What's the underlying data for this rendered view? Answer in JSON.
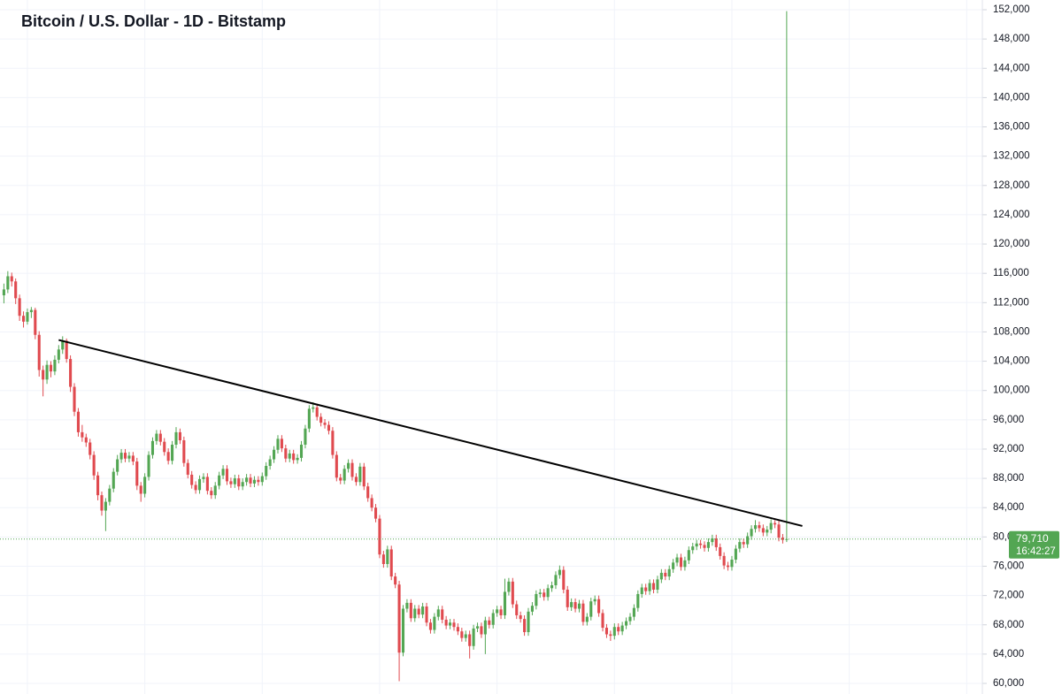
{
  "chart_data": {
    "type": "candlestick",
    "title": "Bitcoin / U.S. Dollar - 1D - Bitstamp",
    "up_color": "#53a653",
    "down_color": "#e04a4f",
    "grid": true,
    "xlim": [
      -1,
      250
    ],
    "xticks": [
      6,
      36,
      66,
      96,
      126,
      156,
      186,
      216,
      246
    ],
    "ylim": [
      58550,
      153330
    ],
    "yticks": [
      {
        "value": 60000,
        "label": "60,000"
      },
      {
        "value": 64000,
        "label": "64,000"
      },
      {
        "value": 68000,
        "label": "68,000"
      },
      {
        "value": 72000,
        "label": "72,000"
      },
      {
        "value": 76000,
        "label": "76,000"
      },
      {
        "value": 80000,
        "label": "80,000"
      },
      {
        "value": 84000,
        "label": "84,000"
      },
      {
        "value": 88000,
        "label": "88,000"
      },
      {
        "value": 92000,
        "label": "92,000"
      },
      {
        "value": 96000,
        "label": "96,000"
      },
      {
        "value": 100000,
        "label": "100,000"
      },
      {
        "value": 104000,
        "label": "104,000"
      },
      {
        "value": 108000,
        "label": "108,000"
      },
      {
        "value": 112000,
        "label": "112,000"
      },
      {
        "value": 116000,
        "label": "116,000"
      },
      {
        "value": 120000,
        "label": "120,000"
      },
      {
        "value": 124000,
        "label": "124,000"
      },
      {
        "value": 128000,
        "label": "128,000"
      },
      {
        "value": 132000,
        "label": "132,000"
      },
      {
        "value": 136000,
        "label": "136,000"
      },
      {
        "value": 140000,
        "label": "140,000"
      },
      {
        "value": 144000,
        "label": "144,000"
      },
      {
        "value": 148000,
        "label": "148,000"
      },
      {
        "value": 152000,
        "label": "152,000"
      }
    ],
    "last_price": {
      "value": 79710,
      "label": "79,710",
      "time": "16:42:27"
    },
    "trendline": {
      "x": [
        14,
        204
      ],
      "y": [
        106900,
        81500
      ],
      "color": "#000000"
    },
    "candles": [
      [
        113000,
        114600,
        111900,
        113800
      ],
      [
        113800,
        116300,
        113300,
        115600
      ],
      [
        115600,
        116100,
        114200,
        114900
      ],
      [
        114900,
        115300,
        111800,
        112600
      ],
      [
        112600,
        113100,
        109500,
        110200
      ],
      [
        110200,
        110800,
        108600,
        109400
      ],
      [
        109400,
        111200,
        109000,
        110700
      ],
      [
        110700,
        111400,
        109900,
        111000
      ],
      [
        111000,
        111300,
        107000,
        107600
      ],
      [
        107600,
        108100,
        101900,
        102800
      ],
      [
        102800,
        103400,
        99200,
        101500
      ],
      [
        101500,
        104100,
        100900,
        103500
      ],
      [
        103500,
        104000,
        101800,
        102600
      ],
      [
        102600,
        104800,
        102100,
        104200
      ],
      [
        104200,
        106200,
        103700,
        105600
      ],
      [
        105600,
        107400,
        105000,
        106800
      ],
      [
        106800,
        107100,
        103800,
        104300
      ],
      [
        104300,
        104800,
        99800,
        100500
      ],
      [
        100500,
        101000,
        96500,
        97100
      ],
      [
        97100,
        97600,
        93700,
        94300
      ],
      [
        94300,
        95300,
        93000,
        93600
      ],
      [
        93600,
        94100,
        92300,
        92900
      ],
      [
        92900,
        93400,
        90600,
        91200
      ],
      [
        91200,
        91700,
        87800,
        88400
      ],
      [
        88400,
        88900,
        85000,
        85700
      ],
      [
        85700,
        86200,
        82900,
        83600
      ],
      [
        83600,
        85300,
        80800,
        84800
      ],
      [
        84800,
        87100,
        84300,
        86600
      ],
      [
        86600,
        89400,
        86100,
        88900
      ],
      [
        88900,
        91200,
        88400,
        90600
      ],
      [
        90600,
        92000,
        90100,
        91500
      ],
      [
        91500,
        92000,
        90200,
        90700
      ],
      [
        90700,
        91600,
        90200,
        91100
      ],
      [
        91100,
        91600,
        89800,
        90300
      ],
      [
        90300,
        90800,
        86400,
        87000
      ],
      [
        87000,
        87500,
        84800,
        85900
      ],
      [
        85900,
        88700,
        85400,
        88200
      ],
      [
        88200,
        91700,
        87700,
        91200
      ],
      [
        91200,
        93600,
        90700,
        93100
      ],
      [
        93100,
        94600,
        92600,
        94100
      ],
      [
        94100,
        94600,
        92500,
        93000
      ],
      [
        93000,
        93500,
        91100,
        91600
      ],
      [
        91600,
        92100,
        89900,
        90400
      ],
      [
        90400,
        93100,
        89900,
        92600
      ],
      [
        92600,
        95000,
        92100,
        94300
      ],
      [
        94300,
        94800,
        92700,
        93200
      ],
      [
        93200,
        93700,
        89600,
        90100
      ],
      [
        90100,
        90600,
        88000,
        88500
      ],
      [
        88500,
        89000,
        86600,
        87100
      ],
      [
        87100,
        87600,
        85900,
        86400
      ],
      [
        86400,
        88400,
        85900,
        87900
      ],
      [
        87900,
        88700,
        87400,
        88200
      ],
      [
        88200,
        88700,
        85800,
        86300
      ],
      [
        86300,
        86800,
        85200,
        85700
      ],
      [
        85700,
        87500,
        85200,
        87000
      ],
      [
        87000,
        88900,
        86500,
        88400
      ],
      [
        88400,
        89800,
        87900,
        89300
      ],
      [
        89300,
        89800,
        87100,
        87600
      ],
      [
        87600,
        88100,
        86700,
        87200
      ],
      [
        87200,
        88500,
        86700,
        88000
      ],
      [
        88000,
        88500,
        86400,
        86900
      ],
      [
        86900,
        88000,
        86400,
        87500
      ],
      [
        87500,
        88600,
        87000,
        88100
      ],
      [
        88100,
        88600,
        86800,
        87300
      ],
      [
        87300,
        88300,
        86800,
        87800
      ],
      [
        87800,
        88300,
        87000,
        87500
      ],
      [
        87500,
        88800,
        87000,
        88300
      ],
      [
        88300,
        90200,
        87800,
        89700
      ],
      [
        89700,
        91100,
        89200,
        90600
      ],
      [
        90600,
        92400,
        90100,
        91900
      ],
      [
        91900,
        93900,
        91400,
        93400
      ],
      [
        93400,
        93900,
        91600,
        92100
      ],
      [
        92100,
        92600,
        90200,
        90700
      ],
      [
        90700,
        91900,
        90200,
        91400
      ],
      [
        91400,
        91900,
        90000,
        90500
      ],
      [
        90500,
        91300,
        90000,
        90800
      ],
      [
        90800,
        93100,
        90300,
        92600
      ],
      [
        92600,
        95300,
        92100,
        94800
      ],
      [
        94800,
        98000,
        94300,
        97500
      ],
      [
        97500,
        98400,
        97000,
        97700
      ],
      [
        97700,
        98200,
        95900,
        96400
      ],
      [
        96400,
        96900,
        95100,
        95600
      ],
      [
        95600,
        96100,
        94800,
        95300
      ],
      [
        95300,
        95800,
        94000,
        94500
      ],
      [
        94500,
        95000,
        90700,
        91200
      ],
      [
        91200,
        91700,
        87600,
        88100
      ],
      [
        88100,
        88600,
        87200,
        87700
      ],
      [
        87700,
        89800,
        87200,
        89300
      ],
      [
        89300,
        90600,
        88800,
        90100
      ],
      [
        90100,
        90600,
        87700,
        88200
      ],
      [
        88200,
        88700,
        87000,
        87500
      ],
      [
        87500,
        90100,
        87000,
        89600
      ],
      [
        89600,
        90100,
        86400,
        86900
      ],
      [
        86900,
        87400,
        84800,
        85300
      ],
      [
        85300,
        85800,
        83500,
        84000
      ],
      [
        84000,
        84500,
        82000,
        82500
      ],
      [
        82500,
        83000,
        77100,
        77600
      ],
      [
        77600,
        78100,
        75800,
        76300
      ],
      [
        76300,
        78800,
        75800,
        78300
      ],
      [
        78300,
        78800,
        74100,
        74600
      ],
      [
        74600,
        75100,
        73000,
        73500
      ],
      [
        73500,
        74000,
        60300,
        64200
      ],
      [
        64200,
        70700,
        63700,
        70200
      ],
      [
        70200,
        71500,
        69700,
        71000
      ],
      [
        71000,
        71500,
        68400,
        68900
      ],
      [
        68900,
        70700,
        68400,
        70200
      ],
      [
        70200,
        70700,
        68900,
        69400
      ],
      [
        69400,
        71000,
        68900,
        70500
      ],
      [
        70500,
        71000,
        67800,
        68300
      ],
      [
        68300,
        68800,
        66800,
        67300
      ],
      [
        67300,
        69600,
        66800,
        69100
      ],
      [
        69100,
        70600,
        68600,
        70100
      ],
      [
        70100,
        70600,
        68200,
        68700
      ],
      [
        68700,
        69200,
        67400,
        67900
      ],
      [
        67900,
        68800,
        67400,
        68300
      ],
      [
        68300,
        68800,
        67200,
        67700
      ],
      [
        67700,
        68200,
        66600,
        67100
      ],
      [
        67100,
        67600,
        65700,
        66200
      ],
      [
        66200,
        67200,
        65700,
        66700
      ],
      [
        66700,
        67200,
        63400,
        65100
      ],
      [
        65100,
        68000,
        64600,
        67500
      ],
      [
        67500,
        68300,
        67000,
        67800
      ],
      [
        67800,
        68300,
        66200,
        66700
      ],
      [
        66700,
        69100,
        64000,
        68600
      ],
      [
        68600,
        69100,
        67500,
        68000
      ],
      [
        68000,
        70100,
        67500,
        69600
      ],
      [
        69600,
        70600,
        69100,
        70100
      ],
      [
        70100,
        70600,
        68800,
        69300
      ],
      [
        69300,
        74300,
        68800,
        72500
      ],
      [
        72500,
        74400,
        72000,
        73900
      ],
      [
        73900,
        74400,
        70300,
        70800
      ],
      [
        70800,
        71300,
        68800,
        69300
      ],
      [
        69300,
        69800,
        68300,
        68800
      ],
      [
        68800,
        69300,
        66500,
        67000
      ],
      [
        67000,
        70300,
        66500,
        69800
      ],
      [
        69800,
        71100,
        69300,
        70600
      ],
      [
        70600,
        72700,
        70100,
        72200
      ],
      [
        72200,
        72900,
        71700,
        72400
      ],
      [
        72400,
        72900,
        71300,
        71800
      ],
      [
        71800,
        73500,
        71300,
        73000
      ],
      [
        73000,
        73900,
        72500,
        73400
      ],
      [
        73400,
        75300,
        72900,
        74800
      ],
      [
        74800,
        76100,
        74300,
        75500
      ],
      [
        75500,
        76000,
        72300,
        72800
      ],
      [
        72800,
        73300,
        69900,
        70400
      ],
      [
        70400,
        71600,
        69900,
        71100
      ],
      [
        71100,
        71600,
        69700,
        70200
      ],
      [
        70200,
        71400,
        69700,
        70900
      ],
      [
        70900,
        71400,
        67900,
        68400
      ],
      [
        68400,
        69600,
        67900,
        69100
      ],
      [
        69100,
        71700,
        68600,
        71200
      ],
      [
        71200,
        72000,
        70700,
        71500
      ],
      [
        71500,
        72000,
        69100,
        69600
      ],
      [
        69600,
        70100,
        67100,
        67600
      ],
      [
        67600,
        68100,
        66200,
        66700
      ],
      [
        66700,
        67200,
        65800,
        66500
      ],
      [
        66500,
        68200,
        66000,
        67700
      ],
      [
        67700,
        68200,
        66600,
        67100
      ],
      [
        67100,
        68400,
        66600,
        67900
      ],
      [
        67900,
        69000,
        67400,
        68500
      ],
      [
        68500,
        69600,
        68000,
        69100
      ],
      [
        69100,
        70800,
        68600,
        70300
      ],
      [
        70300,
        72700,
        69800,
        72200
      ],
      [
        72200,
        73600,
        71700,
        73100
      ],
      [
        73100,
        73600,
        72100,
        72600
      ],
      [
        72600,
        74200,
        72100,
        73700
      ],
      [
        73700,
        74200,
        72300,
        72800
      ],
      [
        72800,
        74700,
        72300,
        74200
      ],
      [
        74200,
        75600,
        73700,
        75100
      ],
      [
        75100,
        75600,
        74100,
        74600
      ],
      [
        74600,
        76100,
        74100,
        75600
      ],
      [
        75600,
        77000,
        75100,
        76500
      ],
      [
        76500,
        77700,
        76000,
        77200
      ],
      [
        77200,
        77700,
        75400,
        75900
      ],
      [
        75900,
        77300,
        75400,
        76800
      ],
      [
        76800,
        78700,
        76300,
        78200
      ],
      [
        78200,
        79200,
        77700,
        78700
      ],
      [
        78700,
        79600,
        78200,
        79100
      ],
      [
        79100,
        79600,
        78400,
        78900
      ],
      [
        78900,
        79400,
        78000,
        78500
      ],
      [
        78500,
        79800,
        78000,
        79300
      ],
      [
        79300,
        80300,
        78800,
        79800
      ],
      [
        79800,
        80300,
        78100,
        78600
      ],
      [
        78600,
        79100,
        76900,
        77400
      ],
      [
        77400,
        77900,
        75600,
        76100
      ],
      [
        76100,
        76600,
        75400,
        75900
      ],
      [
        75900,
        77400,
        75400,
        76900
      ],
      [
        76900,
        78900,
        76400,
        78400
      ],
      [
        78400,
        79800,
        77900,
        79300
      ],
      [
        79300,
        79800,
        78500,
        79000
      ],
      [
        79000,
        80600,
        78500,
        80100
      ],
      [
        80100,
        81600,
        79600,
        81100
      ],
      [
        81100,
        82300,
        80600,
        81600
      ],
      [
        81600,
        82100,
        80700,
        81200
      ],
      [
        81200,
        81700,
        80100,
        80600
      ],
      [
        80600,
        81500,
        80100,
        81000
      ],
      [
        81000,
        82400,
        80500,
        81900
      ],
      [
        81900,
        82300,
        81200,
        81700
      ],
      [
        81700,
        82200,
        79400,
        79900
      ],
      [
        79900,
        80400,
        79100,
        79600
      ],
      [
        79600,
        151800,
        79300,
        79710
      ]
    ]
  }
}
